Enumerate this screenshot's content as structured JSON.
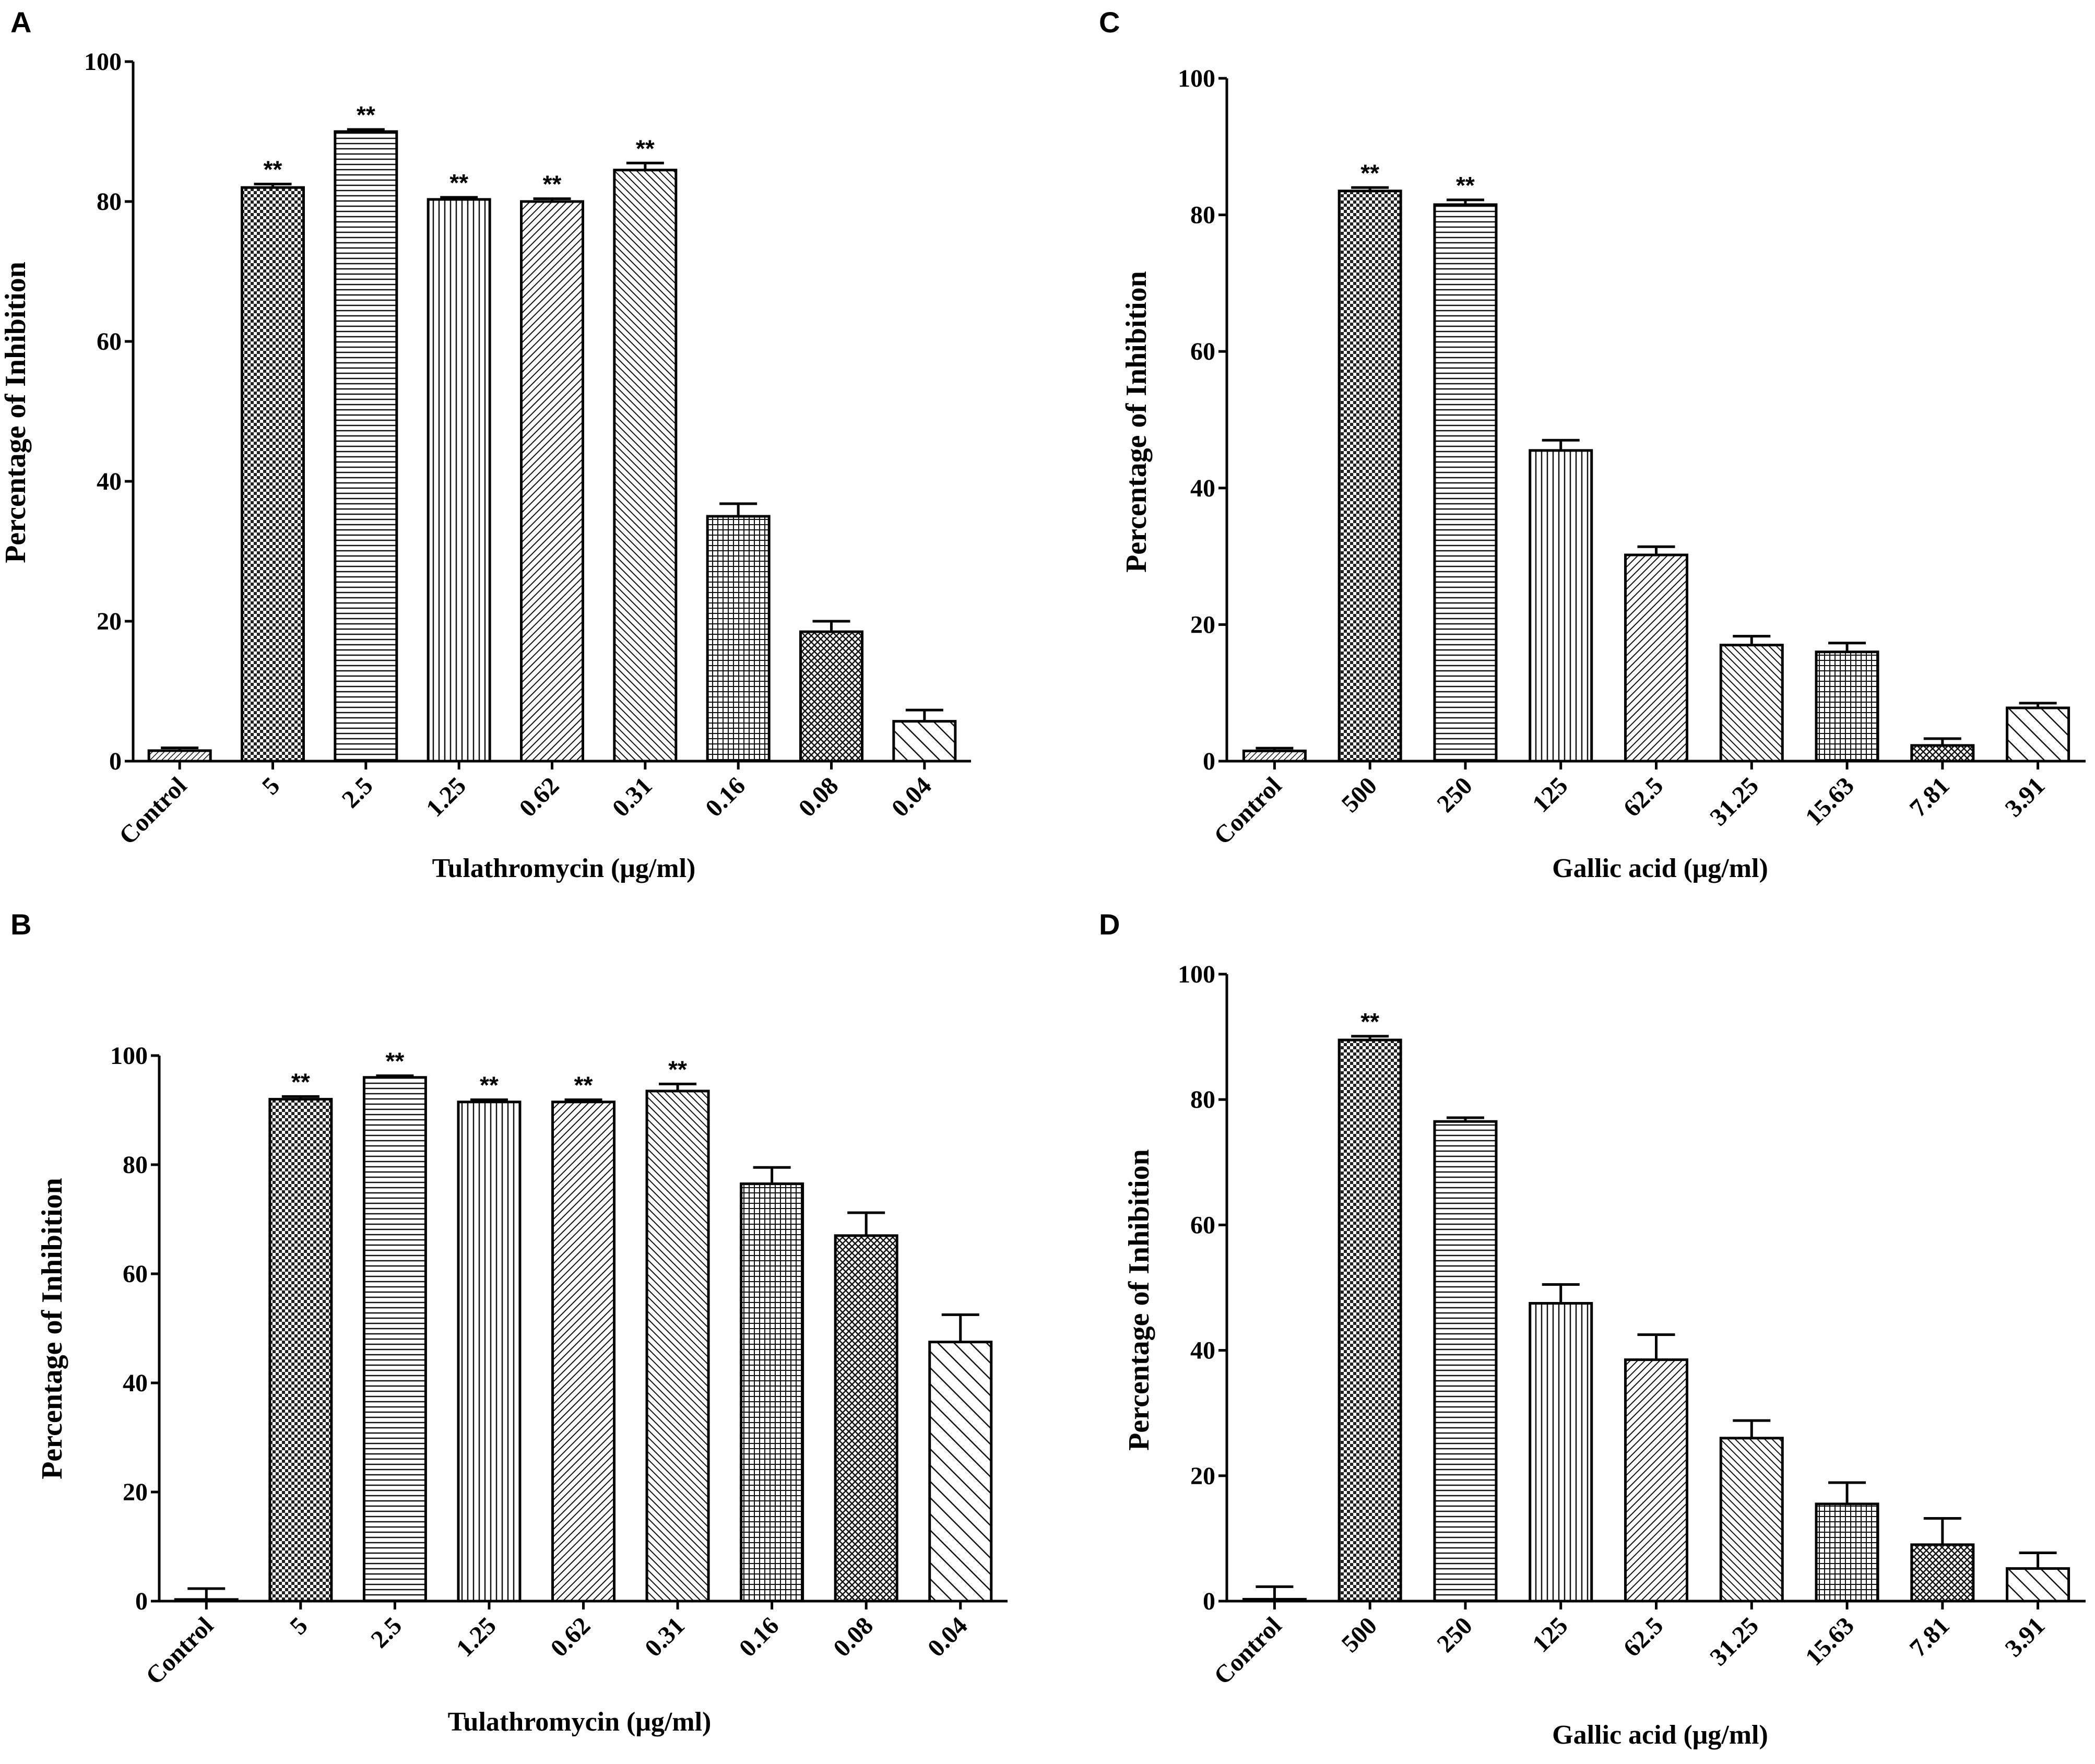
{
  "chart_data": [
    {
      "panel": "A",
      "type": "bar",
      "title": "",
      "xlabel": "Tulathromycin (μg/ml)",
      "ylabel": "Percentage of Inhibition",
      "ylim": [
        0,
        100
      ],
      "yticks": [
        0,
        20,
        40,
        60,
        80,
        100
      ],
      "categories": [
        "Control",
        "5",
        "2.5",
        "1.25",
        "0.62",
        "0.31",
        "0.16",
        "0.08",
        "0.04"
      ],
      "values": [
        1.5,
        82,
        90,
        80.3,
        80,
        84.5,
        35,
        18.5,
        5.7
      ],
      "errors": [
        0.4,
        0.5,
        0.3,
        0.3,
        0.4,
        1.0,
        1.8,
        1.5,
        1.6
      ],
      "significance": [
        "",
        "**",
        "**",
        "**",
        "**",
        "**",
        "",
        "",
        ""
      ],
      "patterns": [
        "diag-fine",
        "checker",
        "hlines",
        "vlines",
        "diag-r",
        "diag-l",
        "grid",
        "crosshatch",
        "diag-wide"
      ]
    },
    {
      "panel": "B",
      "type": "bar",
      "title": "",
      "xlabel": "Tulathromycin (μg/ml)",
      "ylabel": "Percentage of Inhibition",
      "ylim": [
        0,
        100
      ],
      "yticks": [
        0,
        20,
        40,
        60,
        80,
        100
      ],
      "categories": [
        "Control",
        "5",
        "2.5",
        "1.25",
        "0.62",
        "0.31",
        "0.16",
        "0.08",
        "0.04"
      ],
      "values": [
        0.3,
        92,
        96,
        91.5,
        91.5,
        93.5,
        76.5,
        67,
        47.5
      ],
      "errors": [
        2.0,
        0.5,
        0.3,
        0.4,
        0.4,
        1.3,
        3.0,
        4.2,
        5.0
      ],
      "significance": [
        "",
        "**",
        "**",
        "**",
        "**",
        "**",
        "",
        "",
        ""
      ],
      "patterns": [
        "none",
        "checker",
        "hlines",
        "vlines",
        "diag-r",
        "diag-l",
        "grid",
        "crosshatch",
        "diag-wide"
      ]
    },
    {
      "panel": "C",
      "type": "bar",
      "title": "",
      "xlabel": "Gallic acid (μg/ml)",
      "ylabel": "Percentage of Inhibition",
      "ylim": [
        0,
        100
      ],
      "yticks": [
        0,
        20,
        40,
        60,
        80,
        100
      ],
      "categories": [
        "Control",
        "500",
        "250",
        "125",
        "62.5",
        "31.25",
        "15.63",
        "7.81",
        "3.91"
      ],
      "values": [
        1.5,
        83.5,
        81.5,
        45.5,
        30.2,
        17,
        16,
        2.3,
        7.8
      ],
      "errors": [
        0.4,
        0.5,
        0.7,
        1.5,
        1.2,
        1.3,
        1.3,
        1.0,
        0.7
      ],
      "significance": [
        "",
        "**",
        "**",
        "",
        "",
        "",
        "",
        "",
        ""
      ],
      "patterns": [
        "diag-fine",
        "checker",
        "hlines",
        "vlines",
        "diag-r",
        "diag-l",
        "grid",
        "crosshatch",
        "diag-wide"
      ]
    },
    {
      "panel": "D",
      "type": "bar",
      "title": "",
      "xlabel": "Gallic acid (μg/ml)",
      "ylabel": "Percentage of Inhibition",
      "ylim": [
        0,
        100
      ],
      "yticks": [
        0,
        20,
        40,
        60,
        80,
        100
      ],
      "categories": [
        "Control",
        "500",
        "250",
        "125",
        "62.5",
        "31.25",
        "15.63",
        "7.81",
        "3.91"
      ],
      "values": [
        0.3,
        89.5,
        76.5,
        47.5,
        38.5,
        26,
        15.5,
        9,
        5.2
      ],
      "errors": [
        2.0,
        0.6,
        0.6,
        3.0,
        4.0,
        2.8,
        3.4,
        4.2,
        2.5
      ],
      "significance": [
        "",
        "**",
        "",
        "",
        "",
        "",
        "",
        "",
        ""
      ],
      "patterns": [
        "none",
        "checker",
        "hlines",
        "vlines",
        "diag-r",
        "diag-l",
        "grid",
        "crosshatch",
        "diag-wide"
      ]
    }
  ]
}
